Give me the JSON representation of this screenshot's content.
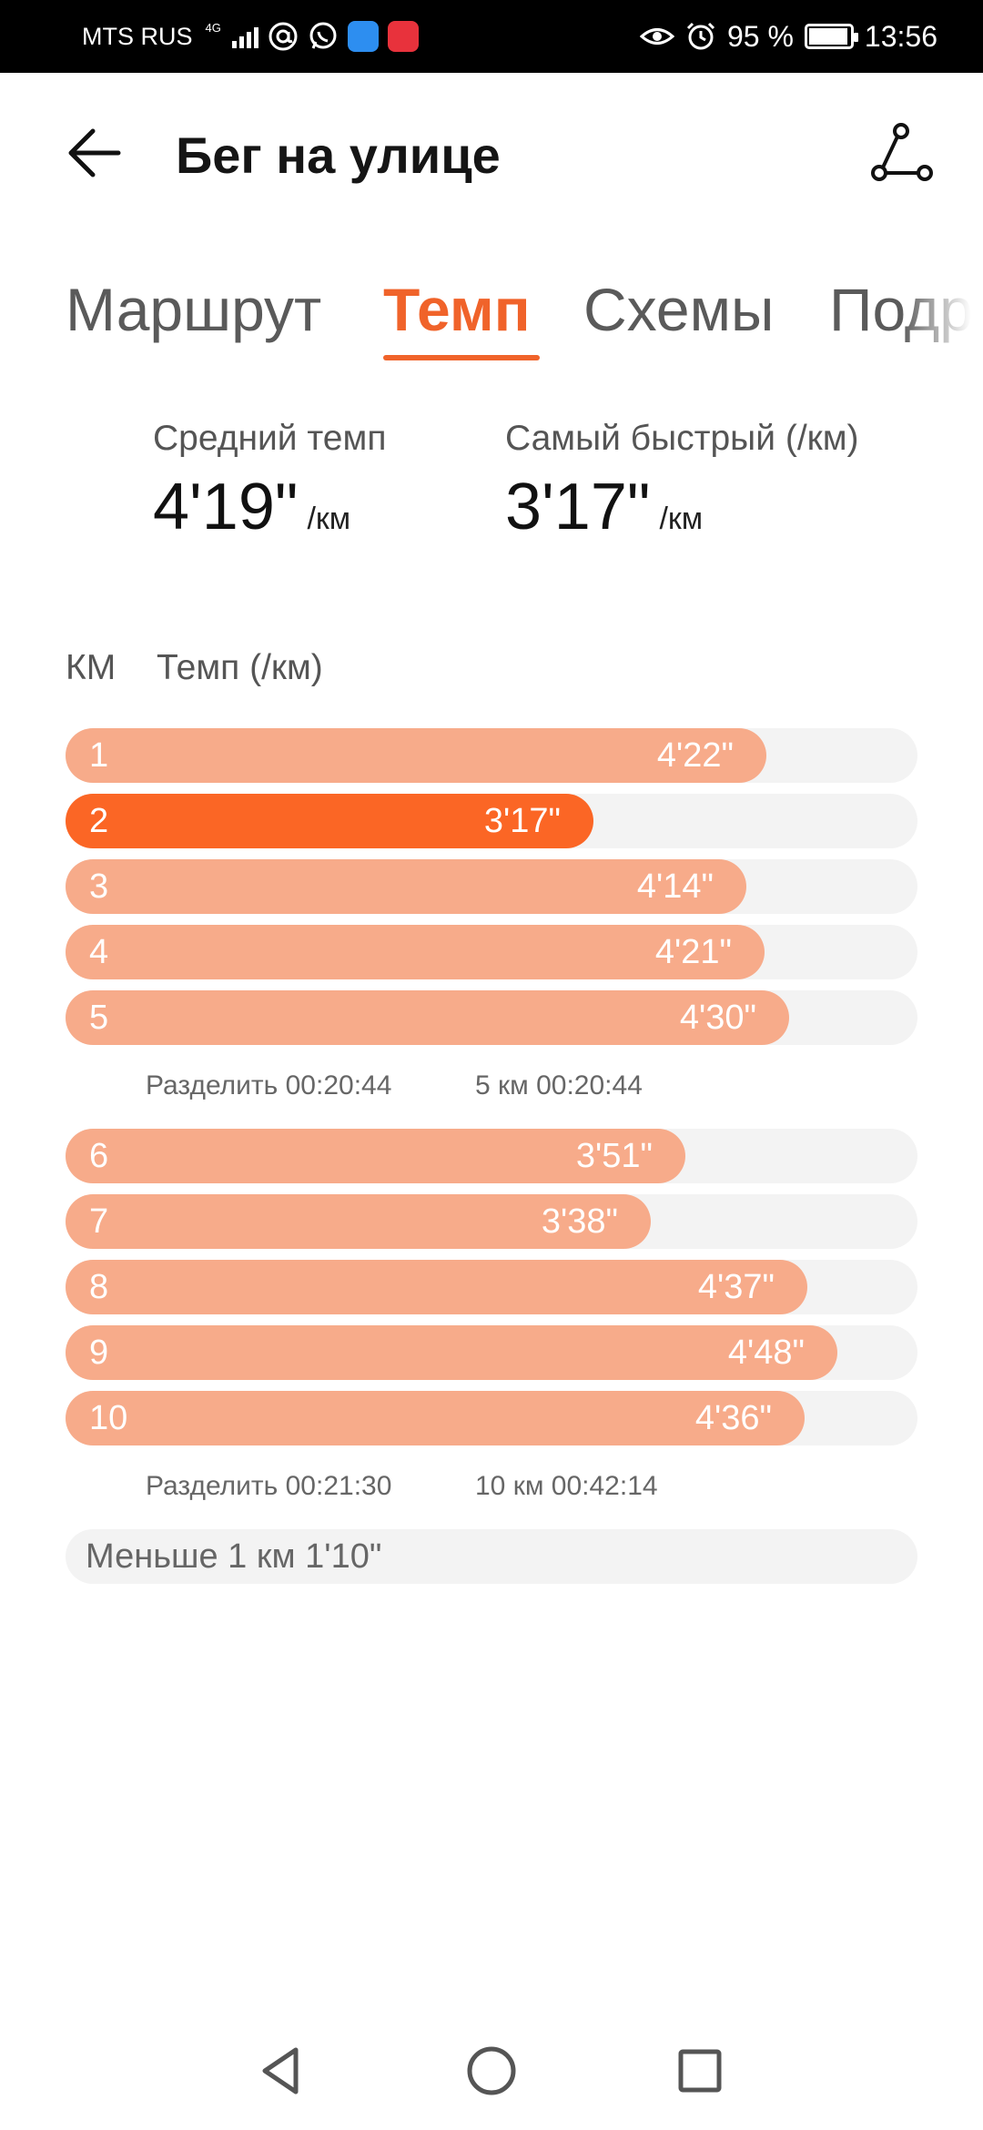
{
  "status_bar": {
    "carrier": "MTS RUS",
    "network": "4G",
    "battery": "95 %",
    "battery_level": 0.95,
    "time": "13:56",
    "app_icons": [
      "at-icon",
      "whatsapp-icon",
      "messenger-icon",
      "huawei-store-icon"
    ],
    "right_icons": [
      "eye-comfort-icon",
      "alarm-icon",
      "battery-icon"
    ]
  },
  "header": {
    "title": "Бег на улице",
    "back_icon": "arrow-left-icon",
    "route_icon": "route-icon"
  },
  "tabs": [
    {
      "label": "Маршрут",
      "active": false
    },
    {
      "label": "Темп",
      "active": true
    },
    {
      "label": "Схемы",
      "active": false
    },
    {
      "label": "Подробности",
      "active": false
    }
  ],
  "summary": {
    "avg_label": "Средний темп",
    "avg_value": "4'19\"",
    "avg_unit": "/км",
    "fast_label": "Самый быстрый (/км)",
    "fast_value": "3'17\"",
    "fast_unit": "/км"
  },
  "table": {
    "col_km": "КМ",
    "col_pace": "Темп (/км)"
  },
  "colors": {
    "accent": "#f0632a",
    "bar": "#f7ab8a",
    "bar_fastest": "#fb6625",
    "track": "#f3f3f3"
  },
  "splits": [
    {
      "km": "1",
      "pace": "4'22\"",
      "fill": 0.823,
      "fastest": false
    },
    {
      "km": "2",
      "pace": "3'17\"",
      "fill": 0.62,
      "fastest": true
    },
    {
      "km": "3",
      "pace": "4'14\"",
      "fill": 0.799,
      "fastest": false
    },
    {
      "km": "4",
      "pace": "4'21\"",
      "fill": 0.82,
      "fastest": false
    },
    {
      "km": "5",
      "pace": "4'30\"",
      "fill": 0.849,
      "fastest": false
    },
    {
      "km": "6",
      "pace": "3'51\"",
      "fill": 0.728,
      "fastest": false
    },
    {
      "km": "7",
      "pace": "3'38\"",
      "fill": 0.687,
      "fastest": false
    },
    {
      "km": "8",
      "pace": "4'37\"",
      "fill": 0.871,
      "fastest": false
    },
    {
      "km": "9",
      "pace": "4'48\"",
      "fill": 0.906,
      "fastest": false
    },
    {
      "km": "10",
      "pace": "4'36\"",
      "fill": 0.867,
      "fastest": false
    }
  ],
  "split_summaries": [
    {
      "split": "Разделить 00:20:44",
      "total": "5 км 00:20:44"
    },
    {
      "split": "Разделить 00:21:30",
      "total": "10 км 00:42:14"
    }
  ],
  "remainder": "Меньше 1 км 1'10\"",
  "nav": [
    "back-triangle-icon",
    "home-circle-icon",
    "recents-square-icon"
  ]
}
